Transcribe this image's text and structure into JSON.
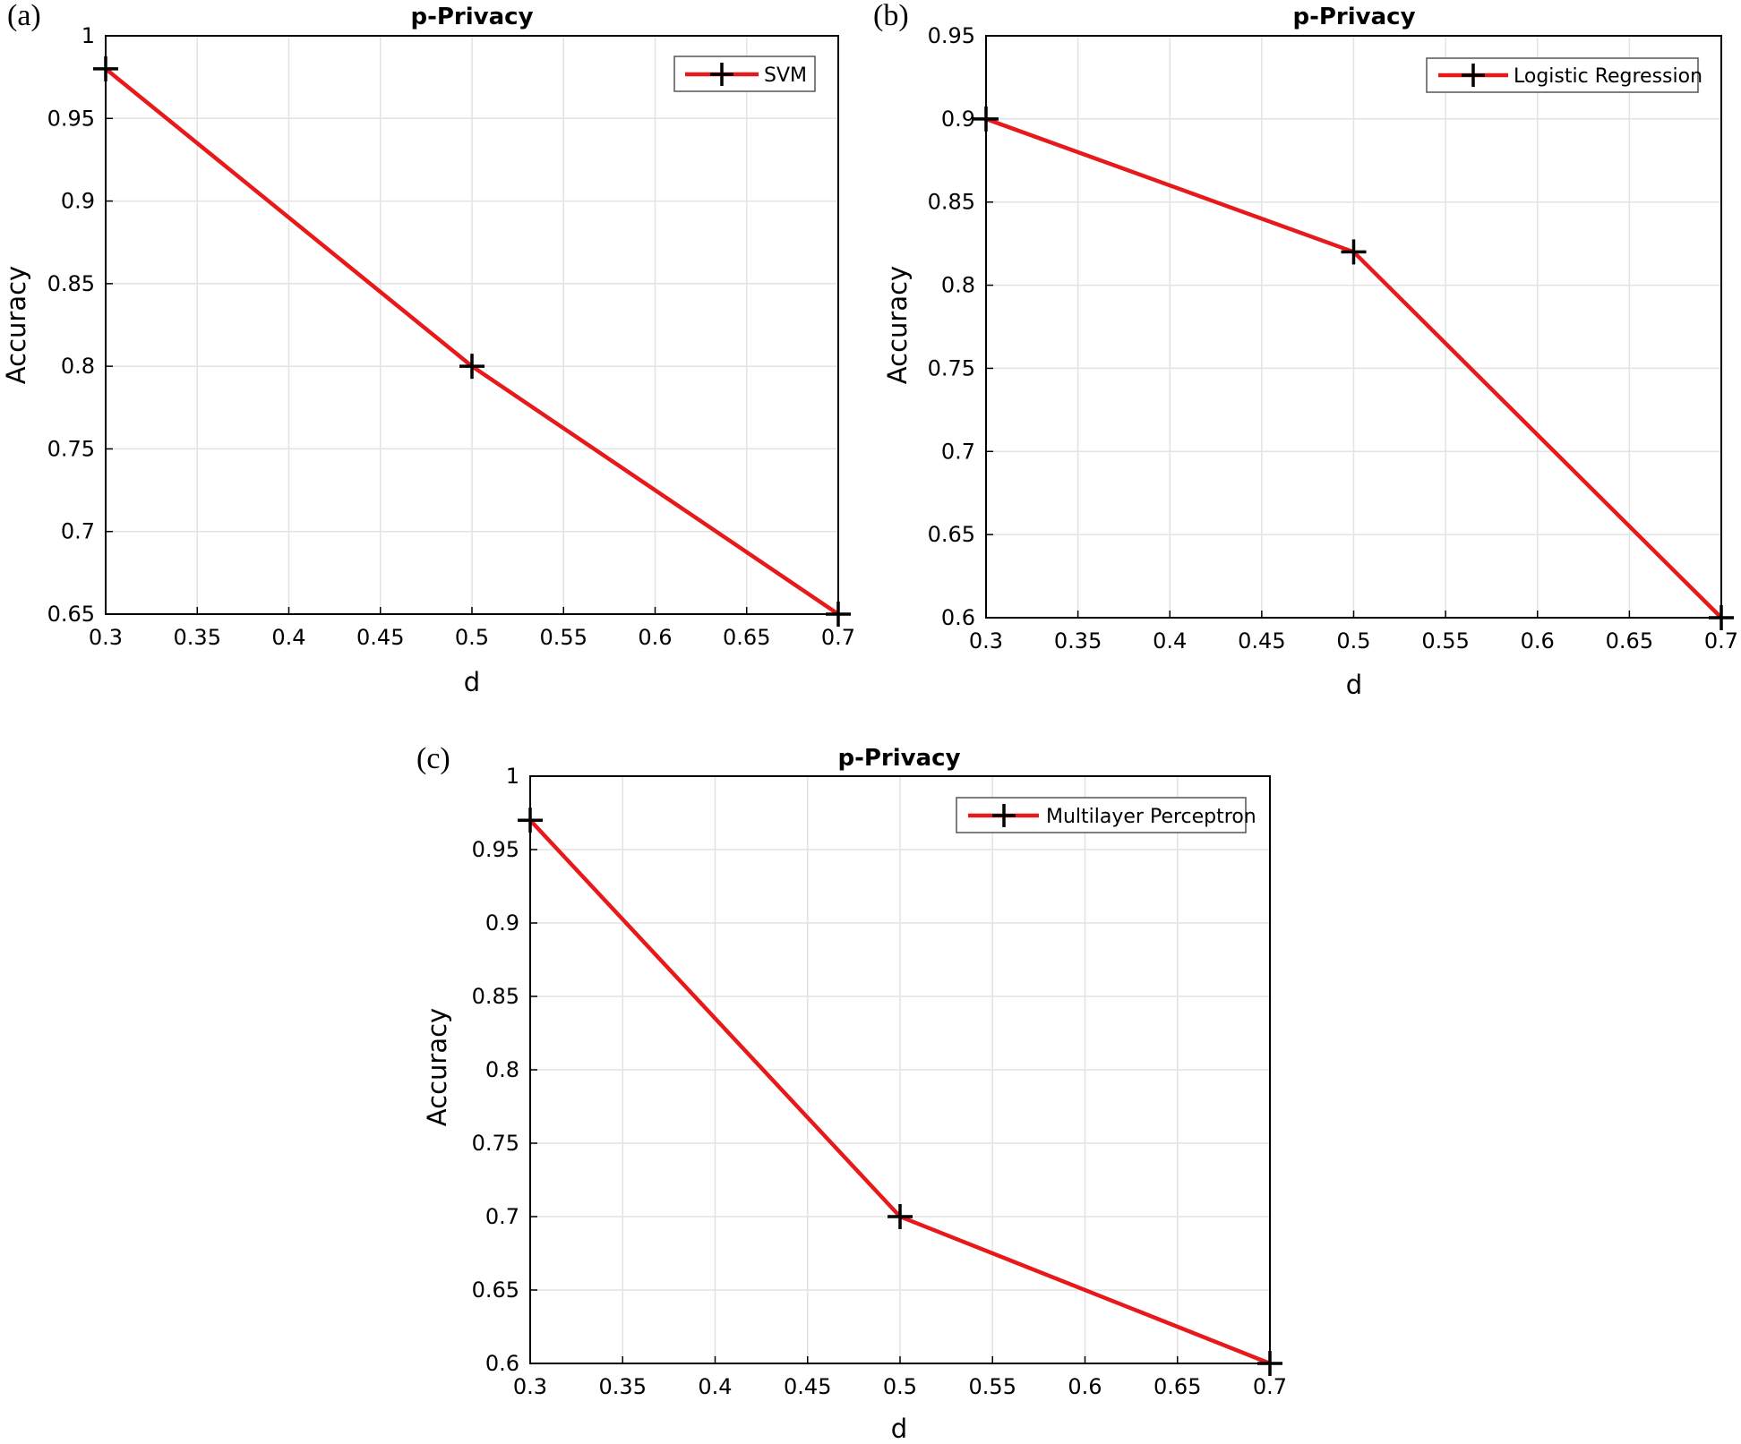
{
  "chart_data": [
    {
      "panel": "(a)",
      "type": "line",
      "title": "p-Privacy",
      "xlabel": "d",
      "ylabel": "Accuracy",
      "xlim": [
        0.3,
        0.7
      ],
      "ylim": [
        0.65,
        1
      ],
      "xticks": [
        "0.3",
        "0.35",
        "0.4",
        "0.45",
        "0.5",
        "0.55",
        "0.6",
        "0.65",
        "0.7"
      ],
      "yticks": [
        "0.65",
        "0.7",
        "0.75",
        "0.8",
        "0.85",
        "0.9",
        "0.95",
        "1"
      ],
      "grid": true,
      "legend_position": "top-right",
      "series": [
        {
          "name": "SVM",
          "color": "#e8191a",
          "marker": "+",
          "x": [
            0.3,
            0.5,
            0.7
          ],
          "y": [
            0.98,
            0.8,
            0.65
          ]
        }
      ]
    },
    {
      "panel": "(b)",
      "type": "line",
      "title": "p-Privacy",
      "xlabel": "d",
      "ylabel": "Accuracy",
      "xlim": [
        0.3,
        0.7
      ],
      "ylim": [
        0.6,
        0.95
      ],
      "xticks": [
        "0.3",
        "0.35",
        "0.4",
        "0.45",
        "0.5",
        "0.55",
        "0.6",
        "0.65",
        "0.7"
      ],
      "yticks": [
        "0.6",
        "0.65",
        "0.7",
        "0.75",
        "0.8",
        "0.85",
        "0.9",
        "0.95"
      ],
      "grid": true,
      "legend_position": "top-right",
      "series": [
        {
          "name": "Logistic Regression",
          "color": "#e8191a",
          "marker": "+",
          "x": [
            0.3,
            0.5,
            0.7
          ],
          "y": [
            0.9,
            0.82,
            0.6
          ]
        }
      ]
    },
    {
      "panel": "(c)",
      "type": "line",
      "title": "p-Privacy",
      "xlabel": "d",
      "ylabel": "Accuracy",
      "xlim": [
        0.3,
        0.7
      ],
      "ylim": [
        0.6,
        1
      ],
      "xticks": [
        "0.3",
        "0.35",
        "0.4",
        "0.45",
        "0.5",
        "0.55",
        "0.6",
        "0.65",
        "0.7"
      ],
      "yticks": [
        "0.6",
        "0.65",
        "0.7",
        "0.75",
        "0.8",
        "0.85",
        "0.9",
        "0.95",
        "1"
      ],
      "grid": true,
      "legend_position": "top-right",
      "series": [
        {
          "name": "Multilayer Perceptron",
          "color": "#e8191a",
          "marker": "+",
          "x": [
            0.3,
            0.5,
            0.7
          ],
          "y": [
            0.97,
            0.7,
            0.6
          ]
        }
      ]
    }
  ]
}
